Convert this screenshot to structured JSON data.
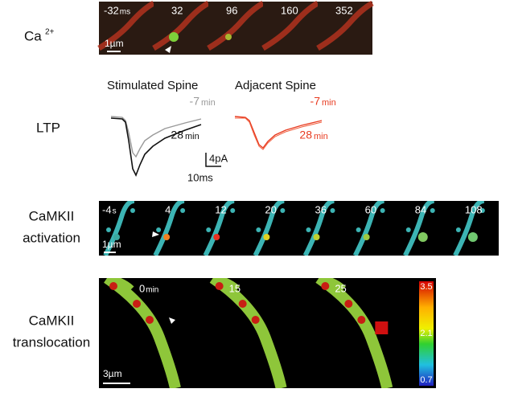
{
  "ca": {
    "label": "Ca",
    "superscript": "2+",
    "frames": [
      "-32",
      "32",
      "96",
      "160",
      "352"
    ],
    "unit": "ms",
    "scale": "1µm"
  },
  "ltp": {
    "label": "LTP",
    "stimulated": {
      "title": "Stimulated Spine",
      "before": "-7",
      "after": "28",
      "unit": "min"
    },
    "adjacent": {
      "title": "Adjacent Spine",
      "before": "-7",
      "after": "28",
      "unit": "min"
    },
    "scale_y": "4pA",
    "scale_x": "10ms"
  },
  "activation": {
    "label_lines": [
      "CaMKII",
      "activation"
    ],
    "frames": [
      "-4",
      "4",
      "12",
      "20",
      "36",
      "60",
      "84",
      "108"
    ],
    "unit": "s",
    "scale": "1µm"
  },
  "translocation": {
    "label_lines": [
      "CaMKII",
      "translocation"
    ],
    "frames": [
      "0",
      "15",
      "25"
    ],
    "unit": "min",
    "scale": "3µm",
    "colorbar": [
      "3.5",
      "2.1",
      "0.7"
    ]
  }
}
